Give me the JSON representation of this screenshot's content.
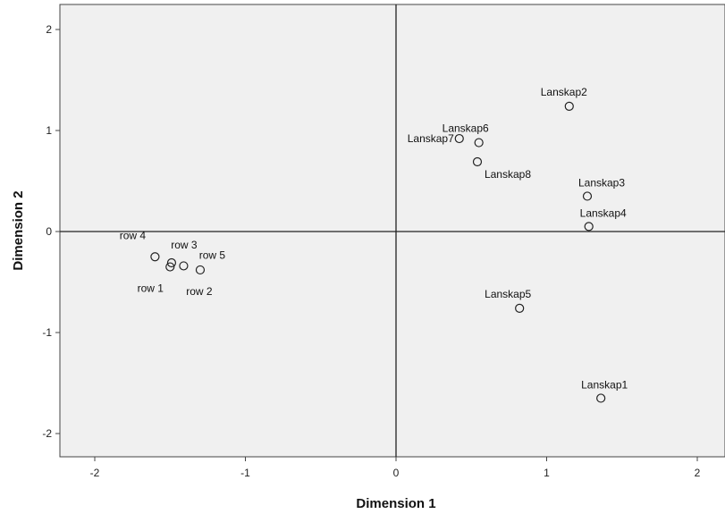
{
  "chart_data": {
    "type": "scatter",
    "title": "",
    "xlabel": "Dimension 1",
    "ylabel": "Dimension 2",
    "xlim": [
      -2.2,
      2.3
    ],
    "ylim": [
      -2.2,
      2.25
    ],
    "xticks": [
      -2,
      -1,
      0,
      1,
      2
    ],
    "yticks": [
      -2,
      -1,
      0,
      1,
      2
    ],
    "xtick_labels": [
      "-2",
      "-1",
      "0",
      "1",
      "2"
    ],
    "ytick_labels": [
      "-2",
      "-1",
      "0",
      "1",
      "2"
    ],
    "grid": false,
    "reference_lines": {
      "x": 0,
      "y": 0
    },
    "plot_background": "#f0f0f0",
    "marker": "open-circle",
    "points": [
      {
        "label": "row 1",
        "x": -1.5,
        "y": -0.35
      },
      {
        "label": "row 2",
        "x": -1.3,
        "y": -0.38
      },
      {
        "label": "row 3",
        "x": -1.49,
        "y": -0.31
      },
      {
        "label": "row 4",
        "x": -1.6,
        "y": -0.25
      },
      {
        "label": "row 5",
        "x": -1.41,
        "y": -0.34
      },
      {
        "label": "Lanskap1",
        "x": 1.36,
        "y": -1.65
      },
      {
        "label": "Lanskap2",
        "x": 1.15,
        "y": 1.24
      },
      {
        "label": "Lanskap3",
        "x": 1.27,
        "y": 0.35
      },
      {
        "label": "Lanskap4",
        "x": 1.28,
        "y": 0.05
      },
      {
        "label": "Lanskap5",
        "x": 0.82,
        "y": -0.76
      },
      {
        "label": "Lanskap6",
        "x": 0.55,
        "y": 0.88
      },
      {
        "label": "Lanskap7",
        "x": 0.42,
        "y": 0.92
      },
      {
        "label": "Lanskap8",
        "x": 0.54,
        "y": 0.69
      }
    ]
  }
}
